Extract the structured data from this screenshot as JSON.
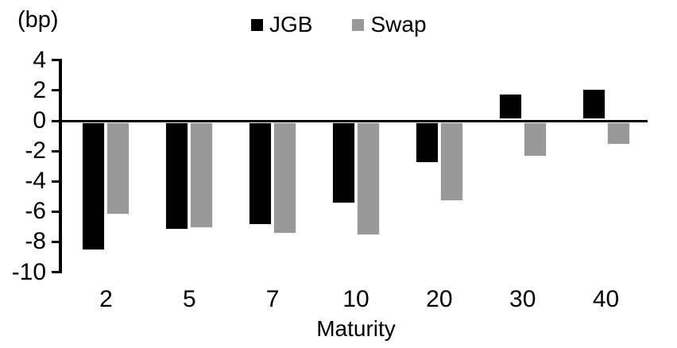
{
  "header": {
    "unit_label": "(bp)"
  },
  "chart_data": {
    "type": "bar",
    "title": "",
    "xlabel": "Maturity",
    "ylabel": "(bp)",
    "categories": [
      "2",
      "5",
      "7",
      "10",
      "20",
      "30",
      "40"
    ],
    "series": [
      {
        "name": "JGB",
        "color": "#000000",
        "values": [
          -8.5,
          -7.1,
          -6.8,
          -5.4,
          -2.7,
          1.7,
          2.0
        ]
      },
      {
        "name": "Swap",
        "color": "#999999",
        "values": [
          -6.1,
          -7.0,
          -7.4,
          -7.5,
          -5.2,
          -2.3,
          -1.5
        ]
      }
    ],
    "ylim": [
      -10,
      4
    ],
    "yticks": [
      4,
      2,
      0,
      -2,
      -4,
      -6,
      -8,
      -10
    ],
    "grid": false,
    "legend_position": "top-center",
    "bar_outline_color": "#efefef",
    "axis_color": "#000000"
  }
}
